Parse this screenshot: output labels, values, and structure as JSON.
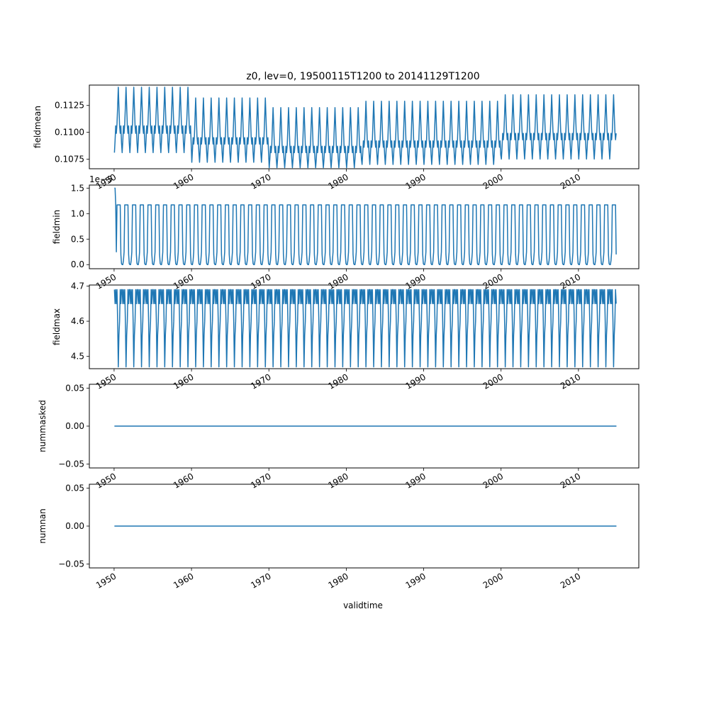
{
  "figure": {
    "title": "z0, lev=0, 19500115T1200 to 20141129T1200",
    "xlabel": "validtime"
  },
  "style": {
    "line_color": "#1f77b4",
    "axes_color": "#000000",
    "background": "#ffffff"
  },
  "chart_data": [
    {
      "type": "line",
      "ylabel": "fieldmean",
      "ylim": [
        0.1066,
        0.1144
      ],
      "yticks": [
        "0.1075",
        "0.1100",
        "0.1125"
      ],
      "ytick_values": [
        0.1075,
        0.11,
        0.1125
      ],
      "xlim_year": [
        1946.8,
        2017.8
      ],
      "xticks": [
        "1950",
        "1960",
        "1970",
        "1980",
        "1990",
        "2000",
        "2010"
      ],
      "x_range": [
        "1950-01-15",
        "2014-11-29"
      ],
      "pattern": "seasonal cycle, 12 monthly values per year",
      "segments": [
        {
          "from_year": 1950,
          "to_year": 1960,
          "monthly": [
            0.1081,
            0.1092,
            0.1106,
            0.1099,
            0.1108,
            0.1124,
            0.1142,
            0.1124,
            0.1106,
            0.1099,
            0.1106,
            0.109
          ]
        },
        {
          "from_year": 1960,
          "to_year": 1970,
          "monthly": [
            0.1072,
            0.1083,
            0.1095,
            0.1089,
            0.1096,
            0.1114,
            0.1132,
            0.1114,
            0.1096,
            0.1089,
            0.1095,
            0.1081
          ]
        },
        {
          "from_year": 1970,
          "to_year": 1982,
          "monthly": [
            0.1067,
            0.1075,
            0.1087,
            0.1081,
            0.1088,
            0.1106,
            0.1123,
            0.1106,
            0.1088,
            0.1081,
            0.1087,
            0.1075
          ]
        },
        {
          "from_year": 1982,
          "to_year": 2000,
          "monthly": [
            0.107,
            0.108,
            0.1092,
            0.1086,
            0.1093,
            0.1111,
            0.1129,
            0.1111,
            0.1093,
            0.1086,
            0.1092,
            0.1079
          ]
        },
        {
          "from_year": 2000,
          "to_year": 2015,
          "monthly": [
            0.1075,
            0.1085,
            0.1099,
            0.1093,
            0.1101,
            0.1117,
            0.1135,
            0.1117,
            0.1101,
            0.1093,
            0.1099,
            0.1085
          ]
        }
      ]
    },
    {
      "type": "line",
      "ylabel": "fieldmin",
      "offset_text": "1e−5",
      "ylim": [
        -0.08,
        1.56
      ],
      "yticks": [
        "0.0",
        "0.5",
        "1.0",
        "1.5"
      ],
      "ytick_values": [
        0.0,
        0.5,
        1.0,
        1.5
      ],
      "xlim_year": [
        1946.8,
        2017.8
      ],
      "xticks": [
        "1950",
        "1960",
        "1970",
        "1980",
        "1990",
        "2000",
        "2010"
      ],
      "x_range": [
        "1950-01-15",
        "2014-11-29"
      ],
      "pattern": "seasonal cycle, 12 monthly values per year",
      "first_values": [
        1.5,
        1.5,
        1.18
      ],
      "segments": [
        {
          "from_year": 1950,
          "to_year": 2015,
          "monthly": [
            0.0,
            0.0,
            0.08,
            0.25,
            1.17,
            1.17,
            1.17,
            1.17,
            1.17,
            1.17,
            0.2,
            0.02
          ]
        }
      ]
    },
    {
      "type": "line",
      "ylabel": "fieldmax",
      "ylim": [
        4.465,
        4.703
      ],
      "yticks": [
        "4.5",
        "4.6",
        "4.7"
      ],
      "ytick_values": [
        4.5,
        4.6,
        4.7
      ],
      "xlim_year": [
        1946.8,
        2017.8
      ],
      "xticks": [
        "1950",
        "1960",
        "1970",
        "1980",
        "1990",
        "2000",
        "2010"
      ],
      "x_range": [
        "1950-01-15",
        "2014-11-29"
      ],
      "pattern": "seasonal cycle, 12 monthly values per year",
      "segments": [
        {
          "from_year": 1950,
          "to_year": 2015,
          "monthly": [
            4.69,
            4.65,
            4.69,
            4.65,
            4.69,
            4.6,
            4.47,
            4.56,
            4.6,
            4.69,
            4.65,
            4.69
          ]
        }
      ]
    },
    {
      "type": "line",
      "ylabel": "nummasked",
      "ylim": [
        -0.055,
        0.055
      ],
      "yticks": [
        "−0.05",
        "0.00",
        "0.05"
      ],
      "ytick_values": [
        -0.05,
        0.0,
        0.05
      ],
      "xlim_year": [
        1946.8,
        2017.8
      ],
      "xticks": [
        "1950",
        "1960",
        "1970",
        "1980",
        "1990",
        "2000",
        "2010"
      ],
      "x_range": [
        "1950-01-15",
        "2014-11-29"
      ],
      "constant_value": 0.0
    },
    {
      "type": "line",
      "ylabel": "numnan",
      "ylim": [
        -0.055,
        0.055
      ],
      "yticks": [
        "−0.05",
        "0.00",
        "0.05"
      ],
      "ytick_values": [
        -0.05,
        0.0,
        0.05
      ],
      "xlim_year": [
        1946.8,
        2017.8
      ],
      "xticks": [
        "1950",
        "1960",
        "1970",
        "1980",
        "1990",
        "2000",
        "2010"
      ],
      "x_range": [
        "1950-01-15",
        "2014-11-29"
      ],
      "constant_value": 0.0
    }
  ]
}
